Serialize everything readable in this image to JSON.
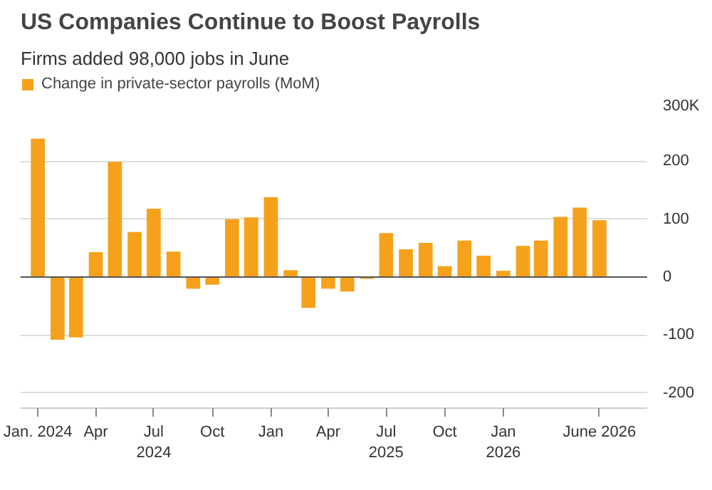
{
  "chart_data": {
    "type": "bar",
    "title": "US Companies Continue to Boost Payrolls",
    "subtitle": "Firms added 98,000 jobs in June",
    "x": [
      "2024-01",
      "2024-02",
      "2024-03",
      "2024-04",
      "2024-05",
      "2024-06",
      "2024-07",
      "2024-08",
      "2024-09",
      "2024-10",
      "2024-11",
      "2024-12",
      "2025-01",
      "2025-02",
      "2025-03",
      "2025-04",
      "2025-05",
      "2025-06",
      "2025-07",
      "2025-08",
      "2025-09",
      "2025-10",
      "2025-11",
      "2025-12",
      "2026-01",
      "2026-02",
      "2026-03",
      "2026-04",
      "2026-05",
      "2026-06"
    ],
    "series": [
      {
        "name": "Change in private-sector payrolls (MoM)",
        "color": "#f5a11c",
        "values": [
          239,
          -108,
          -104,
          43,
          199,
          78,
          118,
          44,
          -20,
          -13,
          100,
          103,
          138,
          12,
          -53,
          -20,
          -25,
          -3,
          76,
          48,
          59,
          19,
          63,
          37,
          11,
          54,
          63,
          104,
          120,
          98
        ]
      }
    ],
    "xlim": [
      "2023-12-05",
      "2026-08-15"
    ],
    "xticks": [
      {
        "value": "2024-01",
        "label": "Jan. 2024"
      },
      {
        "value": "2024-04",
        "label": "Apr"
      },
      {
        "value": "2024-07",
        "label": "Jul\n2024"
      },
      {
        "value": "2024-10",
        "label": "Oct"
      },
      {
        "value": "2025-01",
        "label": "Jan"
      },
      {
        "value": "2025-04",
        "label": "Apr"
      },
      {
        "value": "2025-07",
        "label": "Jul\n2025"
      },
      {
        "value": "2025-10",
        "label": "Oct"
      },
      {
        "value": "2026-01",
        "label": "Jan\n2026"
      },
      {
        "value": "2026-06",
        "label": "June 2026"
      }
    ],
    "ylim": [
      -226,
      300
    ],
    "yticks": [
      {
        "value": 300,
        "label": "300K"
      },
      200,
      100,
      0,
      -100,
      -200
    ],
    "ref_lines": [
      {
        "axis": "y",
        "value": 0,
        "color": "#555555"
      }
    ],
    "grid": "y",
    "legend": "top left"
  }
}
